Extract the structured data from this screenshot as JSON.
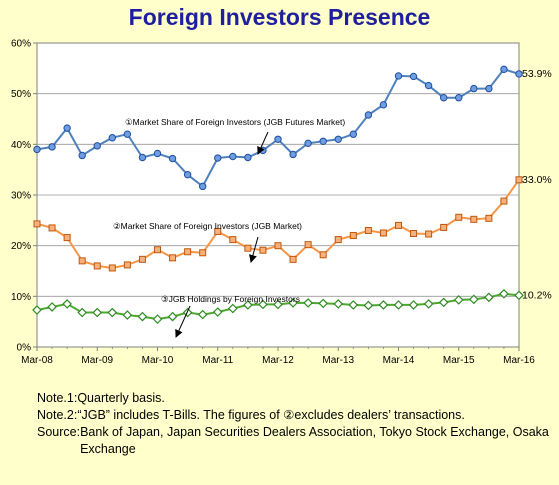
{
  "chart_data": {
    "type": "line",
    "title": "Foreign Investors Presence",
    "ylim": [
      0,
      60
    ],
    "yticks": [
      "0%",
      "10%",
      "20%",
      "30%",
      "40%",
      "50%",
      "60%"
    ],
    "xtick_labels": [
      "Mar-08",
      "Mar-09",
      "Mar-10",
      "Mar-11",
      "Mar-12",
      "Mar-13",
      "Mar-14",
      "Mar-15",
      "Mar-16"
    ],
    "grid": true,
    "quarters": 33,
    "series": [
      {
        "name": "①Market Share of Foreign Investors (JGB Futures Market)",
        "color": "#4F81BD",
        "marker": "circle",
        "end_label": "53.9%",
        "values": [
          39,
          39.5,
          43.2,
          37.8,
          39.7,
          41.3,
          42,
          37.4,
          38.2,
          37.2,
          34,
          31.7,
          37.3,
          37.6,
          37.4,
          38.8,
          41,
          38,
          40.2,
          40.6,
          41,
          42,
          45.8,
          47.8,
          53.5,
          53.4,
          51.6,
          49.2,
          49.2,
          51,
          51,
          54.8,
          53.9
        ]
      },
      {
        "name": "②Market Share of Foreign Investors (JGB Market)",
        "color": "#F79646",
        "marker": "square",
        "end_label": "33.0%",
        "values": [
          24.3,
          23.5,
          21.6,
          17,
          16,
          15.6,
          16.2,
          17.3,
          19.2,
          17.6,
          18.8,
          18.6,
          22.8,
          21.2,
          19.5,
          19.1,
          20,
          17.3,
          20.2,
          18.2,
          21.2,
          22,
          23,
          22.5,
          24,
          22.4,
          22.3,
          23.6,
          25.6,
          25.2,
          25.4,
          28.8,
          33
        ]
      },
      {
        "name": "③JGB Holdings by Foreign Investors",
        "color": "#4EA72E",
        "marker": "diamond",
        "end_label": "10.2%",
        "values": [
          7.3,
          7.9,
          8.5,
          6.8,
          6.8,
          6.8,
          6.3,
          6,
          5.5,
          6,
          6.8,
          6.4,
          6.9,
          7.6,
          8.3,
          8.4,
          8.4,
          8.7,
          8.7,
          8.6,
          8.5,
          8.3,
          8.2,
          8.3,
          8.3,
          8.3,
          8.5,
          8.8,
          9.3,
          9.4,
          9.8,
          10.5,
          10.2
        ]
      }
    ]
  },
  "notes": [
    {
      "label": "Note.1: ",
      "text": "Quarterly basis."
    },
    {
      "label": "Note.2: ",
      "text": "“JGB” includes T-Bills. The figures of ②excludes dealers’ transactions."
    },
    {
      "label": "Source: ",
      "text": "Bank of Japan, Japan Securities Dealers Association, Tokyo Stock Exchange, Osaka Exchange"
    }
  ]
}
